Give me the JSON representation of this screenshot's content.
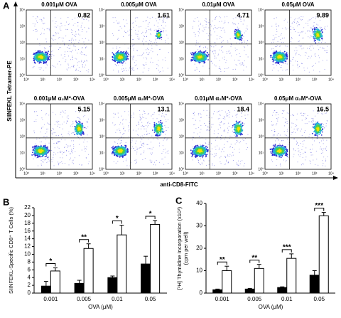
{
  "panel_a": {
    "label": "A",
    "y_label": "SIINFEKL Tetramer-PE",
    "x_label": "anti-CD8-FITC",
    "tick_labels": [
      "10⁰",
      "10¹",
      "10²",
      "10³",
      "10⁴"
    ],
    "plots": [
      {
        "title": "0.001μM OVA",
        "percent": "0.82"
      },
      {
        "title": "0.005μM OVA",
        "percent": "1.61"
      },
      {
        "title": "0.01μM OVA",
        "percent": "4.71"
      },
      {
        "title": "0.05μM OVA",
        "percent": "9.89"
      },
      {
        "title": "0.001μM α₂M*-OVA",
        "percent": "5.15"
      },
      {
        "title": "0.005μM α₂M*-OVA",
        "percent": "13.1"
      },
      {
        "title": "0.01μM α₂M*-OVA",
        "percent": "18.4"
      },
      {
        "title": "0.05μM α₂M*-OVA",
        "percent": "16.5"
      }
    ]
  },
  "chart_data": [
    {
      "type": "bar",
      "panel_label": "B",
      "ylabel": [
        "SIINFEKL-Specific CD8⁺ T Cells (%)"
      ],
      "xlabel": "OVA (μM)",
      "categories": [
        "0.001",
        "0.005",
        "0.01",
        "0.05"
      ],
      "series": [
        {
          "color": "#000000",
          "values": [
            1.8,
            2.5,
            4.0,
            7.5
          ],
          "errors": [
            1.2,
            0.8,
            0.4,
            2.0
          ]
        },
        {
          "color": "#ffffff",
          "values": [
            5.7,
            11.5,
            15,
            17.7
          ],
          "errors": [
            0.8,
            1.2,
            2.5,
            1.0
          ]
        }
      ],
      "significance": [
        "*",
        "**",
        "*",
        "*"
      ],
      "ylim": [
        0,
        22
      ],
      "yticks": [
        0,
        2,
        4,
        6,
        8,
        10,
        12,
        14,
        16,
        18,
        20,
        22
      ]
    },
    {
      "type": "bar",
      "panel_label": "C",
      "ylabel": [
        "[³H] Thymidine Incorporation (x10³)",
        "(cpm per well)"
      ],
      "xlabel": "OVA (μM)",
      "categories": [
        "0.001",
        "0.005",
        "0.01",
        "0.05"
      ],
      "series": [
        {
          "color": "#000000",
          "values": [
            1.5,
            1.8,
            2.5,
            8
          ],
          "errors": [
            0.3,
            0.3,
            0.3,
            2
          ]
        },
        {
          "color": "#ffffff",
          "values": [
            10,
            11,
            15.5,
            34.5
          ],
          "errors": [
            2,
            1.8,
            2,
            1.5
          ]
        }
      ],
      "significance": [
        "**",
        "**",
        "***",
        "***"
      ],
      "ylim": [
        0,
        40
      ],
      "yticks": [
        0,
        10,
        20,
        30,
        40
      ]
    }
  ]
}
